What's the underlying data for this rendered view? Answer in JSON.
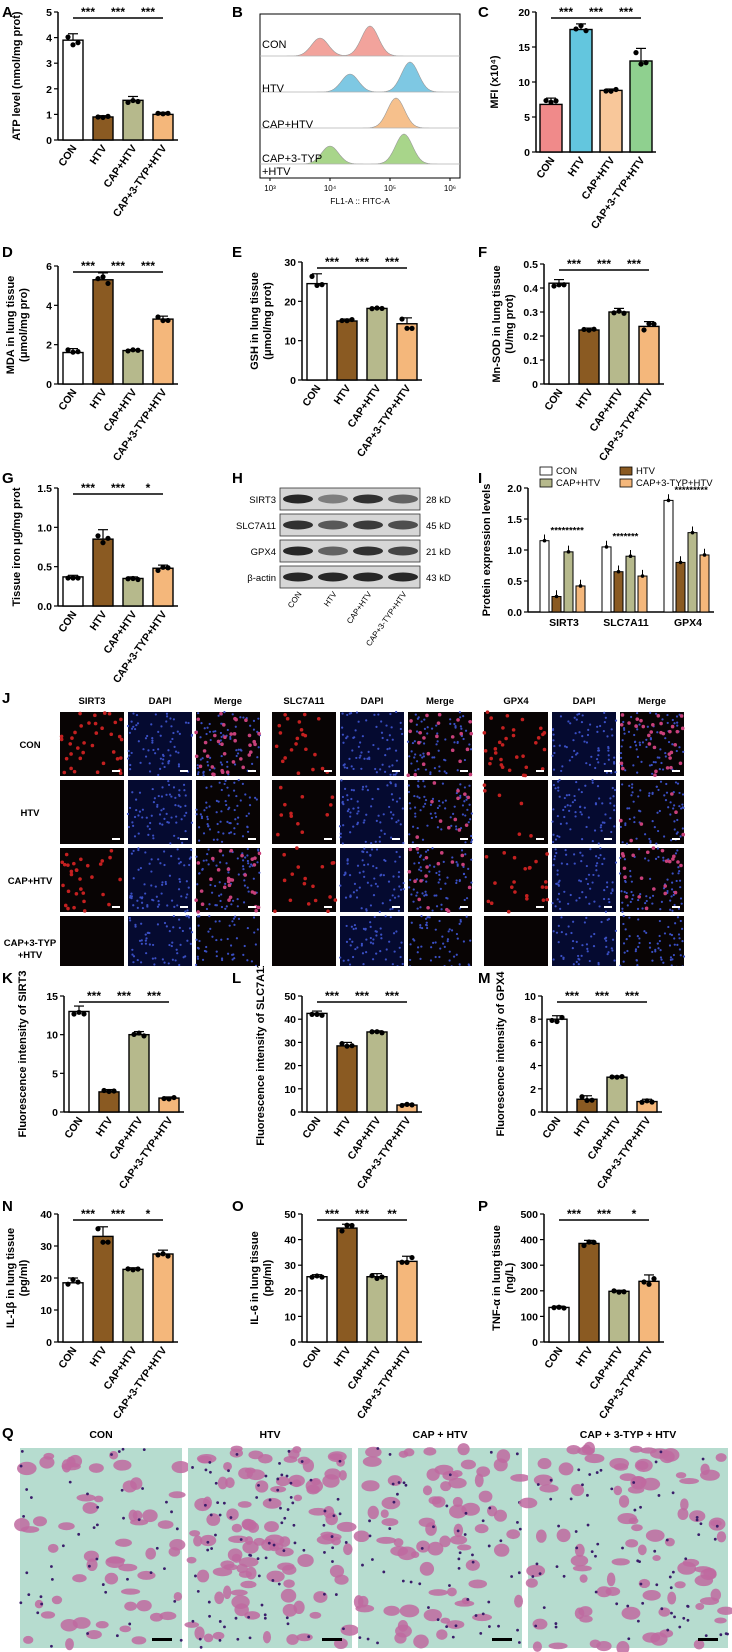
{
  "colors": {
    "CON": "#ffffff",
    "HTV": "#8a5a22",
    "CAP+HTV": "#b6b98c",
    "CAP+3-TYP+HTV": "#f4b77b",
    "flow_CON": "#f2a39c",
    "flow_HTV": "#7ec8e3",
    "flow_CAP+HTV": "#f6c08c",
    "flow_CAP+3-TYP+HTV": "#a8d58a",
    "mfi_CON": "#f08a8a",
    "mfi_HTV": "#63c6de",
    "mfi_CAP+HTV": "#f8c79a",
    "mfi_CAP+3-TYP+HTV": "#8fd08f"
  },
  "groups": [
    "CON",
    "HTV",
    "CAP+HTV",
    "CAP+3-TYP+HTV"
  ],
  "panels": {
    "A": "A",
    "B": "B",
    "C": "C",
    "D": "D",
    "E": "E",
    "F": "F",
    "G": "G",
    "H": "H",
    "I": "I",
    "J": "J",
    "K": "K",
    "L": "L",
    "M": "M",
    "N": "N",
    "O": "O",
    "P": "P",
    "Q": "Q"
  },
  "chart_data": [
    {
      "id": "A",
      "type": "bar",
      "categories": [
        "CON",
        "HTV",
        "CAP+HTV",
        "CAP+3-TYP+HTV"
      ],
      "values": [
        3.9,
        0.9,
        1.55,
        1.0
      ],
      "errors": [
        0.25,
        0.05,
        0.15,
        0.08
      ],
      "ylabel": "ATP level (nmol/mg prot)",
      "ylim": [
        0,
        5
      ],
      "yticks": [
        0,
        1,
        2,
        3,
        4,
        5
      ],
      "sig": [
        "***",
        "***",
        "***"
      ]
    },
    {
      "id": "C",
      "type": "bar",
      "categories": [
        "CON",
        "HTV",
        "CAP+HTV",
        "CAP+3-TYP+HTV"
      ],
      "values": [
        6.8,
        17.5,
        8.8,
        13.0
      ],
      "errors": [
        0.9,
        0.8,
        0.2,
        1.8
      ],
      "ylabel": "MFI (x10⁴)",
      "ylim": [
        0,
        20
      ],
      "yticks": [
        0,
        5,
        10,
        15,
        20
      ],
      "sig": [
        "***",
        "***",
        "***"
      ]
    },
    {
      "id": "D",
      "type": "bar",
      "categories": [
        "CON",
        "HTV",
        "CAP+HTV",
        "CAP+3-TYP+HTV"
      ],
      "values": [
        1.6,
        5.3,
        1.7,
        3.3
      ],
      "errors": [
        0.2,
        0.35,
        0.05,
        0.15
      ],
      "ylabel": "MDA in lung tissue (μmol/mg pro)",
      "ylim": [
        0,
        6
      ],
      "yticks": [
        0,
        2,
        4,
        6
      ],
      "sig": [
        "***",
        "***",
        "***"
      ]
    },
    {
      "id": "E",
      "type": "bar",
      "categories": [
        "CON",
        "HTV",
        "CAP+HTV",
        "CAP+3-TYP+HTV"
      ],
      "values": [
        24.5,
        15.0,
        18.2,
        14.3
      ],
      "errors": [
        2.5,
        0.5,
        0.2,
        1.5
      ],
      "ylabel": "GSH in lung tissue (μmol/mg prot)",
      "ylim": [
        0,
        30
      ],
      "yticks": [
        0,
        10,
        20,
        30
      ],
      "sig": [
        "***",
        "***",
        "***"
      ]
    },
    {
      "id": "F",
      "type": "bar",
      "categories": [
        "CON",
        "HTV",
        "CAP+HTV",
        "CAP+3-TYP+HTV"
      ],
      "values": [
        0.42,
        0.225,
        0.3,
        0.24
      ],
      "errors": [
        0.015,
        0.008,
        0.015,
        0.02
      ],
      "ylabel": "Mn-SOD in lung tissue (U/mg prot)",
      "ylim": [
        0,
        0.5
      ],
      "yticks": [
        0,
        0.1,
        0.2,
        0.3,
        0.4,
        0.5
      ],
      "sig": [
        "***",
        "***",
        "***"
      ]
    },
    {
      "id": "G",
      "type": "bar",
      "categories": [
        "CON",
        "HTV",
        "CAP+HTV",
        "CAP+3-TYP+HTV"
      ],
      "values": [
        0.37,
        0.85,
        0.35,
        0.48
      ],
      "errors": [
        0.02,
        0.12,
        0.02,
        0.04
      ],
      "ylabel": "Tissue iron μg/mg prot",
      "ylim": [
        0,
        1.5
      ],
      "yticks": [
        0,
        0.5,
        1.0,
        1.5
      ],
      "ytick_labels": [
        "0.0",
        "0.5",
        "1.0",
        "1.5"
      ],
      "sig": [
        "***",
        "***",
        "*"
      ]
    },
    {
      "id": "I",
      "type": "bar",
      "categories": [
        "SIRT3",
        "SLC7A11",
        "GPX4"
      ],
      "series": [
        {
          "name": "CON",
          "values": [
            1.15,
            1.05,
            1.8
          ]
        },
        {
          "name": "HTV",
          "values": [
            0.25,
            0.65,
            0.8
          ]
        },
        {
          "name": "CAP+HTV",
          "values": [
            0.97,
            0.9,
            1.28
          ]
        },
        {
          "name": "CAP+3-TYP+HTV",
          "values": [
            0.42,
            0.58,
            0.92
          ]
        }
      ],
      "ylabel": "Protein expression levels",
      "ylim": [
        0,
        2.0
      ],
      "yticks": [
        0,
        0.5,
        1.0,
        1.5,
        2.0
      ],
      "ytick_labels": [
        "0.0",
        "0.5",
        "1.0",
        "1.5",
        "2.0"
      ],
      "sig": [
        [
          "***",
          "***",
          "***"
        ],
        [
          "***",
          "***",
          "*"
        ],
        [
          "***",
          "***",
          "***"
        ]
      ],
      "legend_placement": "top"
    },
    {
      "id": "K",
      "type": "bar",
      "categories": [
        "CON",
        "HTV",
        "CAP+HTV",
        "CAP+3-TYP+HTV"
      ],
      "values": [
        13.0,
        2.6,
        10.0,
        1.8
      ],
      "errors": [
        0.7,
        0.3,
        0.4,
        0.15
      ],
      "ylabel": "Fluorescence intensity of SIRT3",
      "ylim": [
        0,
        15
      ],
      "yticks": [
        0,
        5,
        10,
        15
      ],
      "sig": [
        "***",
        "***",
        "***"
      ]
    },
    {
      "id": "L",
      "type": "bar",
      "categories": [
        "CON",
        "HTV",
        "CAP+HTV",
        "CAP+3-TYP+HTV"
      ],
      "values": [
        42.5,
        28.5,
        34.5,
        3.0
      ],
      "errors": [
        1.0,
        1.5,
        0.5,
        0.5
      ],
      "ylabel": "Fluorescence intensity of SLC7A11",
      "ylim": [
        0,
        50
      ],
      "yticks": [
        0,
        10,
        20,
        30,
        40,
        50
      ],
      "sig": [
        "***",
        "***",
        "***"
      ]
    },
    {
      "id": "M",
      "type": "bar",
      "categories": [
        "CON",
        "HTV",
        "CAP+HTV",
        "CAP+3-TYP+HTV"
      ],
      "values": [
        8.0,
        1.1,
        3.0,
        0.9
      ],
      "errors": [
        0.3,
        0.3,
        0.1,
        0.2
      ],
      "ylabel": "Fluorescence intensity of GPX4",
      "ylim": [
        0,
        10
      ],
      "yticks": [
        0,
        2,
        4,
        6,
        8,
        10
      ],
      "sig": [
        "***",
        "***",
        "***"
      ]
    },
    {
      "id": "N",
      "type": "bar",
      "categories": [
        "CON",
        "HTV",
        "CAP+HTV",
        "CAP+3-TYP+HTV"
      ],
      "values": [
        18.5,
        33.0,
        22.7,
        27.5
      ],
      "errors": [
        1.5,
        3.0,
        0.5,
        1.2
      ],
      "ylabel": "IL-1β in lung tissue (pg/ml)",
      "ylim": [
        0,
        40
      ],
      "yticks": [
        0,
        10,
        20,
        30,
        40
      ],
      "sig": [
        "***",
        "***",
        "*"
      ]
    },
    {
      "id": "O",
      "type": "bar",
      "categories": [
        "CON",
        "HTV",
        "CAP+HTV",
        "CAP+3-TYP+HTV"
      ],
      "values": [
        25.5,
        44.5,
        25.5,
        31.5
      ],
      "errors": [
        0.8,
        1.5,
        1.2,
        2.0
      ],
      "ylabel": "IL-6 in lung tissue (pg/ml)",
      "ylim": [
        0,
        50
      ],
      "yticks": [
        0,
        10,
        20,
        30,
        40,
        50
      ],
      "sig": [
        "***",
        "***",
        "**"
      ]
    },
    {
      "id": "P",
      "type": "bar",
      "categories": [
        "CON",
        "HTV",
        "CAP+HTV",
        "CAP+3-TYP+HTV"
      ],
      "values": [
        135,
        385,
        198,
        237
      ],
      "errors": [
        5,
        12,
        4,
        25
      ],
      "ylabel": "TNF-α in lung tissue (ng/L)",
      "ylim": [
        0,
        500
      ],
      "yticks": [
        0,
        100,
        200,
        300,
        400,
        500
      ],
      "sig": [
        "***",
        "***",
        "*"
      ]
    }
  ],
  "flow": {
    "labels": [
      "CON",
      "HTV",
      "CAP+HTV",
      "CAP+3-TYP",
      "+HTV"
    ],
    "xticks": [
      "10³",
      "10⁴",
      "10⁵",
      "10⁶"
    ],
    "xlabel": "FL1-A :: FITC-A"
  },
  "blot": {
    "proteins": [
      "SIRT3",
      "SLC7A11",
      "GPX4",
      "β-actin"
    ],
    "sizes": [
      "28 kD",
      "45 kD",
      "21 kD",
      "43 kD"
    ],
    "lanes": [
      "CON",
      "HTV",
      "CAP+HTV",
      "CAP+3-TYP+HTV"
    ],
    "intensity": [
      [
        0.9,
        0.45,
        0.85,
        0.6
      ],
      [
        0.85,
        0.65,
        0.8,
        0.7
      ],
      [
        0.9,
        0.6,
        0.85,
        0.75
      ],
      [
        0.9,
        0.9,
        0.9,
        0.9
      ]
    ]
  },
  "if_grid": {
    "cols": [
      "SIRT3",
      "DAPI",
      "Merge",
      "SLC7A11",
      "DAPI",
      "Merge",
      "GPX4",
      "DAPI",
      "Merge"
    ],
    "rows": [
      "CON",
      "HTV",
      "CAP+HTV",
      "CAP+3-TYP",
      "+HTV"
    ],
    "red_level": [
      [
        0.9,
        0.55,
        0.8
      ],
      [
        0.05,
        0.3,
        0.15
      ],
      [
        0.75,
        0.45,
        0.55
      ],
      [
        0.05,
        0.05,
        0.05
      ]
    ]
  },
  "he": {
    "titles": [
      "CON",
      "HTV",
      "CAP + HTV",
      "CAP + 3-TYP + HTV"
    ]
  }
}
